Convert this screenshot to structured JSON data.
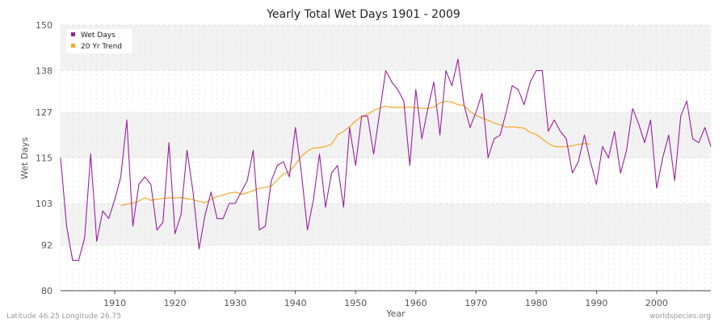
{
  "chart_data": {
    "type": "line",
    "title": "Yearly Total Wet Days 1901 - 2009",
    "xlabel": "Year",
    "ylabel": "Wet Days",
    "xlim": [
      1901,
      2009
    ],
    "ylim": [
      80,
      150
    ],
    "x_ticks": [
      1910,
      1920,
      1930,
      1940,
      1950,
      1960,
      1970,
      1980,
      1990,
      2000
    ],
    "y_ticks": [
      80,
      92,
      103,
      115,
      127,
      138,
      150
    ],
    "legend_position": "top-left",
    "series": [
      {
        "name": "Wet Days",
        "color": "#9b1fa0",
        "x_start": 1901,
        "values": [
          115,
          97,
          88,
          88,
          94,
          116,
          93,
          101,
          99,
          104,
          110,
          125,
          97,
          108,
          110,
          108,
          96,
          98,
          119,
          95,
          100,
          117,
          106,
          91,
          100,
          106,
          99,
          99,
          103,
          103,
          106,
          109,
          117,
          96,
          97,
          109,
          113,
          114,
          110,
          123,
          111,
          96,
          104,
          116,
          102,
          111,
          113,
          102,
          123,
          113,
          126,
          126,
          116,
          127,
          138,
          135,
          133,
          130,
          113,
          133,
          120,
          128,
          135,
          121,
          138,
          134,
          141,
          129,
          123,
          127,
          132,
          115,
          120,
          121,
          127,
          134,
          133,
          129,
          135,
          138,
          138,
          122,
          125,
          122,
          120,
          111,
          114,
          121,
          114,
          108,
          118,
          115,
          122,
          111,
          117,
          128,
          124,
          119,
          125,
          107,
          115,
          121,
          109,
          126,
          130,
          120,
          119,
          123,
          118
        ]
      },
      {
        "name": "20 Yr Trend",
        "color": "#f5a623",
        "x_start": 1911,
        "values": [
          102.5,
          102.8,
          103.1,
          103.6,
          104.5,
          103.8,
          104.1,
          104.3,
          104.5,
          104.4,
          104.6,
          104.2,
          104.0,
          103.5,
          103.2,
          104.1,
          104.8,
          105.2,
          105.7,
          106.0,
          105.4,
          105.8,
          106.4,
          107.0,
          107.2,
          107.6,
          109.2,
          110.8,
          111.3,
          113.3,
          115.4,
          116.8,
          117.6,
          117.7,
          118.0,
          118.6,
          121.1,
          122.0,
          123.2,
          124.7,
          125.9,
          126.5,
          127.5,
          128.2,
          128.6,
          128.3,
          128.3,
          128.3,
          128.4,
          128.2,
          128.1,
          128.0,
          128.4,
          129.5,
          129.9,
          129.7,
          129.0,
          128.8,
          127.3,
          126.2,
          125.5,
          124.9,
          124.2,
          123.7,
          123.1,
          123.2,
          123.0,
          122.8,
          121.7,
          121.2,
          120.0,
          118.8,
          118.0,
          117.9,
          118.0,
          118.2,
          118.5,
          118.8,
          118.6
        ]
      }
    ]
  },
  "footer": {
    "left": "Latitude 46.25 Longitude 26.75",
    "right": "worldspecies.org"
  }
}
